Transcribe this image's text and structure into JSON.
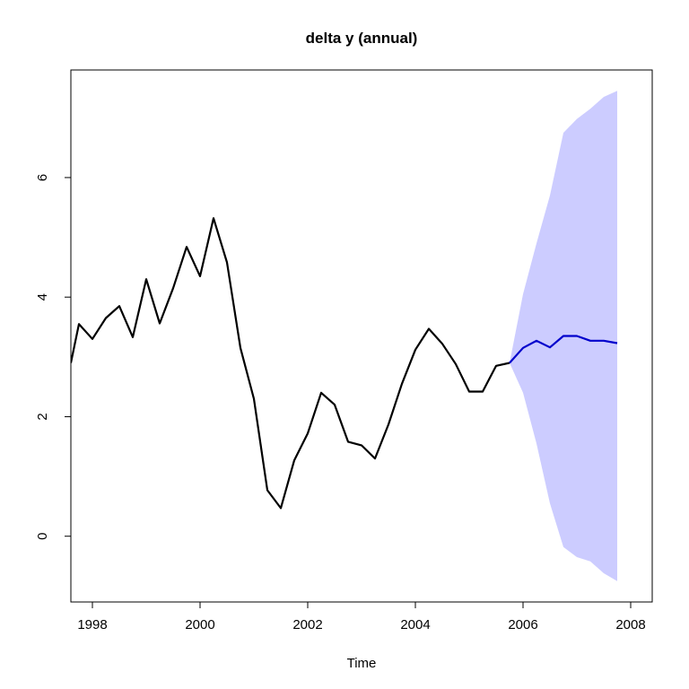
{
  "chart_data": {
    "type": "line",
    "title": "delta y (annual)",
    "xlabel": "Time",
    "ylabel": "",
    "xlim": [
      1997.6,
      2008.4
    ],
    "ylim": [
      -1.1,
      7.8
    ],
    "x_ticks": [
      1998,
      2000,
      2002,
      2004,
      2006,
      2008
    ],
    "y_ticks": [
      0,
      2,
      4,
      6
    ],
    "grid": false,
    "legend": "none",
    "series": [
      {
        "role": "observed",
        "color": "#000000",
        "points": [
          [
            1997.6,
            2.9
          ],
          [
            1997.75,
            3.55
          ],
          [
            1998.0,
            3.3
          ],
          [
            1998.25,
            3.65
          ],
          [
            1998.5,
            3.85
          ],
          [
            1998.75,
            3.33
          ],
          [
            1999.0,
            4.3
          ],
          [
            1999.25,
            3.56
          ],
          [
            1999.5,
            4.15
          ],
          [
            1999.75,
            4.84
          ],
          [
            2000.0,
            4.35
          ],
          [
            2000.25,
            5.32
          ],
          [
            2000.5,
            4.58
          ],
          [
            2000.75,
            3.15
          ],
          [
            2001.0,
            2.3
          ],
          [
            2001.25,
            0.77
          ],
          [
            2001.5,
            0.47
          ],
          [
            2001.75,
            1.27
          ],
          [
            2002.0,
            1.72
          ],
          [
            2002.25,
            2.4
          ],
          [
            2002.5,
            2.2
          ],
          [
            2002.75,
            1.58
          ],
          [
            2003.0,
            1.52
          ],
          [
            2003.25,
            1.3
          ],
          [
            2003.5,
            1.87
          ],
          [
            2003.75,
            2.55
          ],
          [
            2004.0,
            3.12
          ],
          [
            2004.25,
            3.47
          ],
          [
            2004.5,
            3.22
          ],
          [
            2004.75,
            2.88
          ],
          [
            2005.0,
            2.42
          ],
          [
            2005.25,
            2.42
          ],
          [
            2005.5,
            2.85
          ],
          [
            2005.75,
            2.9
          ]
        ]
      },
      {
        "role": "forecast",
        "color": "#0000CC",
        "points": [
          [
            2005.75,
            2.9
          ],
          [
            2006.0,
            3.15
          ],
          [
            2006.25,
            3.27
          ],
          [
            2006.5,
            3.16
          ],
          [
            2006.75,
            3.35
          ],
          [
            2007.0,
            3.35
          ],
          [
            2007.25,
            3.27
          ],
          [
            2007.5,
            3.27
          ],
          [
            2007.75,
            3.23
          ]
        ]
      }
    ],
    "band": {
      "role": "prediction-interval",
      "color": "#CCCCFF",
      "x": [
        2005.75,
        2006.0,
        2006.25,
        2006.5,
        2006.75,
        2007.0,
        2007.25,
        2007.5,
        2007.75
      ],
      "upper": [
        2.9,
        4.05,
        4.9,
        5.7,
        6.75,
        6.98,
        7.15,
        7.35,
        7.45
      ],
      "lower": [
        2.9,
        2.4,
        1.55,
        0.55,
        -0.18,
        -0.35,
        -0.42,
        -0.62,
        -0.75
      ]
    }
  }
}
